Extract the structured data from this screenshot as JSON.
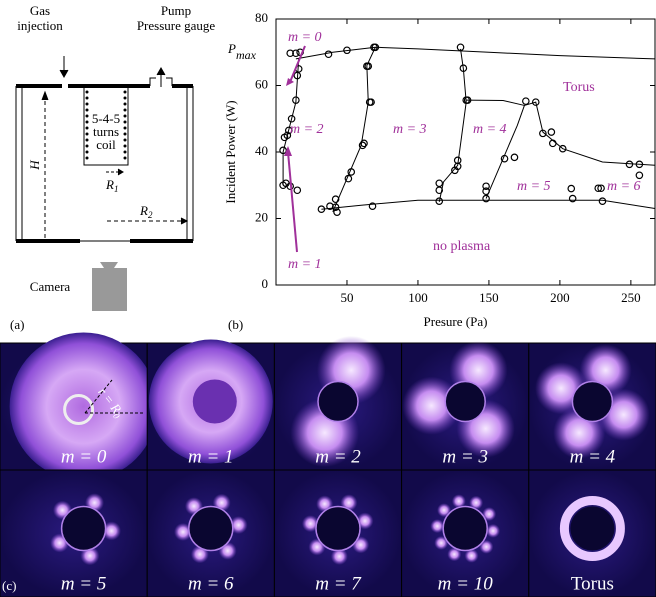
{
  "diagram": {
    "gas": [
      "Gas",
      "injection"
    ],
    "pump": [
      "Pump",
      "Pressure gauge"
    ],
    "height": "H",
    "coil": [
      "5-4-5",
      "turns",
      "coil"
    ],
    "r1": {
      "text": "R",
      "sub": "1"
    },
    "r2": {
      "text": "R",
      "sub": "2"
    },
    "camera": "Camera",
    "panel": "(a)"
  },
  "chart_data": {
    "type": "scatter",
    "panel": "(b)",
    "xlabel": "Presure (Pa)",
    "ylabel": "Incident Power (W)",
    "xlim": [
      0,
      267
    ],
    "ylim": [
      0,
      80
    ],
    "xticks": [
      50,
      100,
      150,
      200,
      250
    ],
    "yticks": [
      0,
      20,
      40,
      60,
      80
    ],
    "annotations": [
      {
        "text": "P",
        "sub": "max"
      },
      "m = 0",
      "m = 1",
      "m = 2",
      "m = 3",
      "m = 4",
      "m = 5",
      "m = 6",
      "Torus",
      "no plasma"
    ],
    "points": {
      "x": [
        5,
        7,
        10,
        5,
        6,
        8,
        9,
        11,
        14,
        15,
        16,
        17,
        14,
        10,
        15,
        32,
        38,
        42,
        43,
        42,
        51,
        53,
        61,
        62,
        66,
        67,
        65,
        64,
        69,
        70,
        50,
        37,
        68,
        115,
        115,
        115,
        126,
        128,
        128,
        135,
        134,
        132,
        130,
        148,
        148,
        148,
        161,
        168,
        176,
        183,
        188,
        194,
        195,
        202,
        208,
        209,
        227,
        229,
        230,
        249,
        256,
        256
      ],
      "y": [
        30,
        30.6,
        29.7,
        40.5,
        44.4,
        45,
        46.5,
        50,
        55.6,
        63,
        65,
        70,
        69.7,
        69.7,
        28.5,
        22.8,
        23.7,
        23.4,
        21.9,
        25.8,
        32,
        34,
        42,
        42.6,
        55,
        55,
        65.8,
        65.8,
        71.5,
        71.5,
        70.6,
        69.4,
        23.7,
        25.2,
        28.5,
        30.6,
        34.5,
        37.5,
        35.7,
        55.6,
        55.6,
        65.2,
        71.5,
        26,
        29.7,
        28.2,
        38,
        38.4,
        55.3,
        55,
        45.6,
        46,
        42.6,
        41,
        29,
        26,
        29.1,
        29.1,
        25.2,
        36.3,
        36.3,
        33
      ]
    },
    "curves": [
      {
        "x": [
          14,
          40,
          70,
          100,
          150,
          200,
          267
        ],
        "y": [
          68,
          70,
          71.5,
          71,
          70,
          69,
          68
        ]
      },
      {
        "x": [
          32,
          60,
          100,
          150,
          200,
          230,
          267
        ],
        "y": [
          22.8,
          24,
          25.5,
          25.5,
          25.5,
          25.5,
          23
        ]
      },
      {
        "x": [
          5,
          5,
          8,
          14,
          16
        ],
        "y": [
          30,
          40,
          45,
          55,
          68
        ]
      },
      {
        "x": [
          40,
          50,
          60,
          65,
          64,
          70
        ],
        "y": [
          22,
          32,
          42,
          55,
          66,
          71.5
        ]
      },
      {
        "x": [
          115,
          118,
          128,
          134,
          132,
          130
        ],
        "y": [
          25,
          31,
          36,
          55,
          65,
          71
        ]
      },
      {
        "x": [
          148,
          160,
          170,
          175,
          160,
          134
        ],
        "y": [
          26,
          38,
          48,
          54,
          55.5,
          55.6
        ]
      },
      {
        "x": [
          175,
          183,
          188,
          202,
          230,
          267
        ],
        "y": [
          54,
          55,
          46,
          41,
          37,
          36
        ]
      }
    ]
  },
  "images": {
    "panel": "(c)",
    "radius_label": {
      "text": "r = R",
      "sub": "0"
    },
    "labels": [
      "m = 0",
      "m = 1",
      "m = 2",
      "m = 3",
      "m = 4",
      "m = 5",
      "m = 6",
      "m = 7",
      "m = 10",
      "Torus"
    ]
  }
}
